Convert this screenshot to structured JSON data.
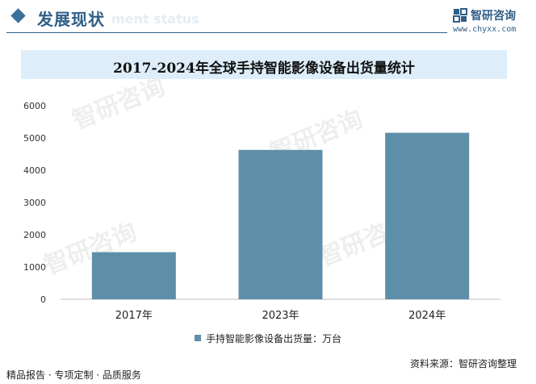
{
  "header": {
    "title": "发展现状",
    "subtitle_faded": "ment status",
    "brand_name": "智研咨询",
    "brand_url": "www.chyxx.com"
  },
  "chart_data": {
    "type": "bar",
    "title": "2017-2024年全球手持智能影像设备出货量统计",
    "categories": [
      "2017年",
      "2023年",
      "2024年"
    ],
    "series": [
      {
        "name": "手持智能影像设备出货量：万台",
        "values": [
          1460,
          4630,
          5160
        ]
      }
    ],
    "yticks": [
      0,
      1000,
      2000,
      3000,
      4000,
      5000,
      6000
    ],
    "ylim": [
      0,
      6000
    ],
    "grid": false,
    "legend": "bottom",
    "color": "#5e8fa8"
  },
  "footer": {
    "left": "精品报告 · 专项定制 · 品质服务",
    "source": "资料来源：智研咨询整理"
  },
  "watermark": {
    "text": "智研咨询"
  }
}
